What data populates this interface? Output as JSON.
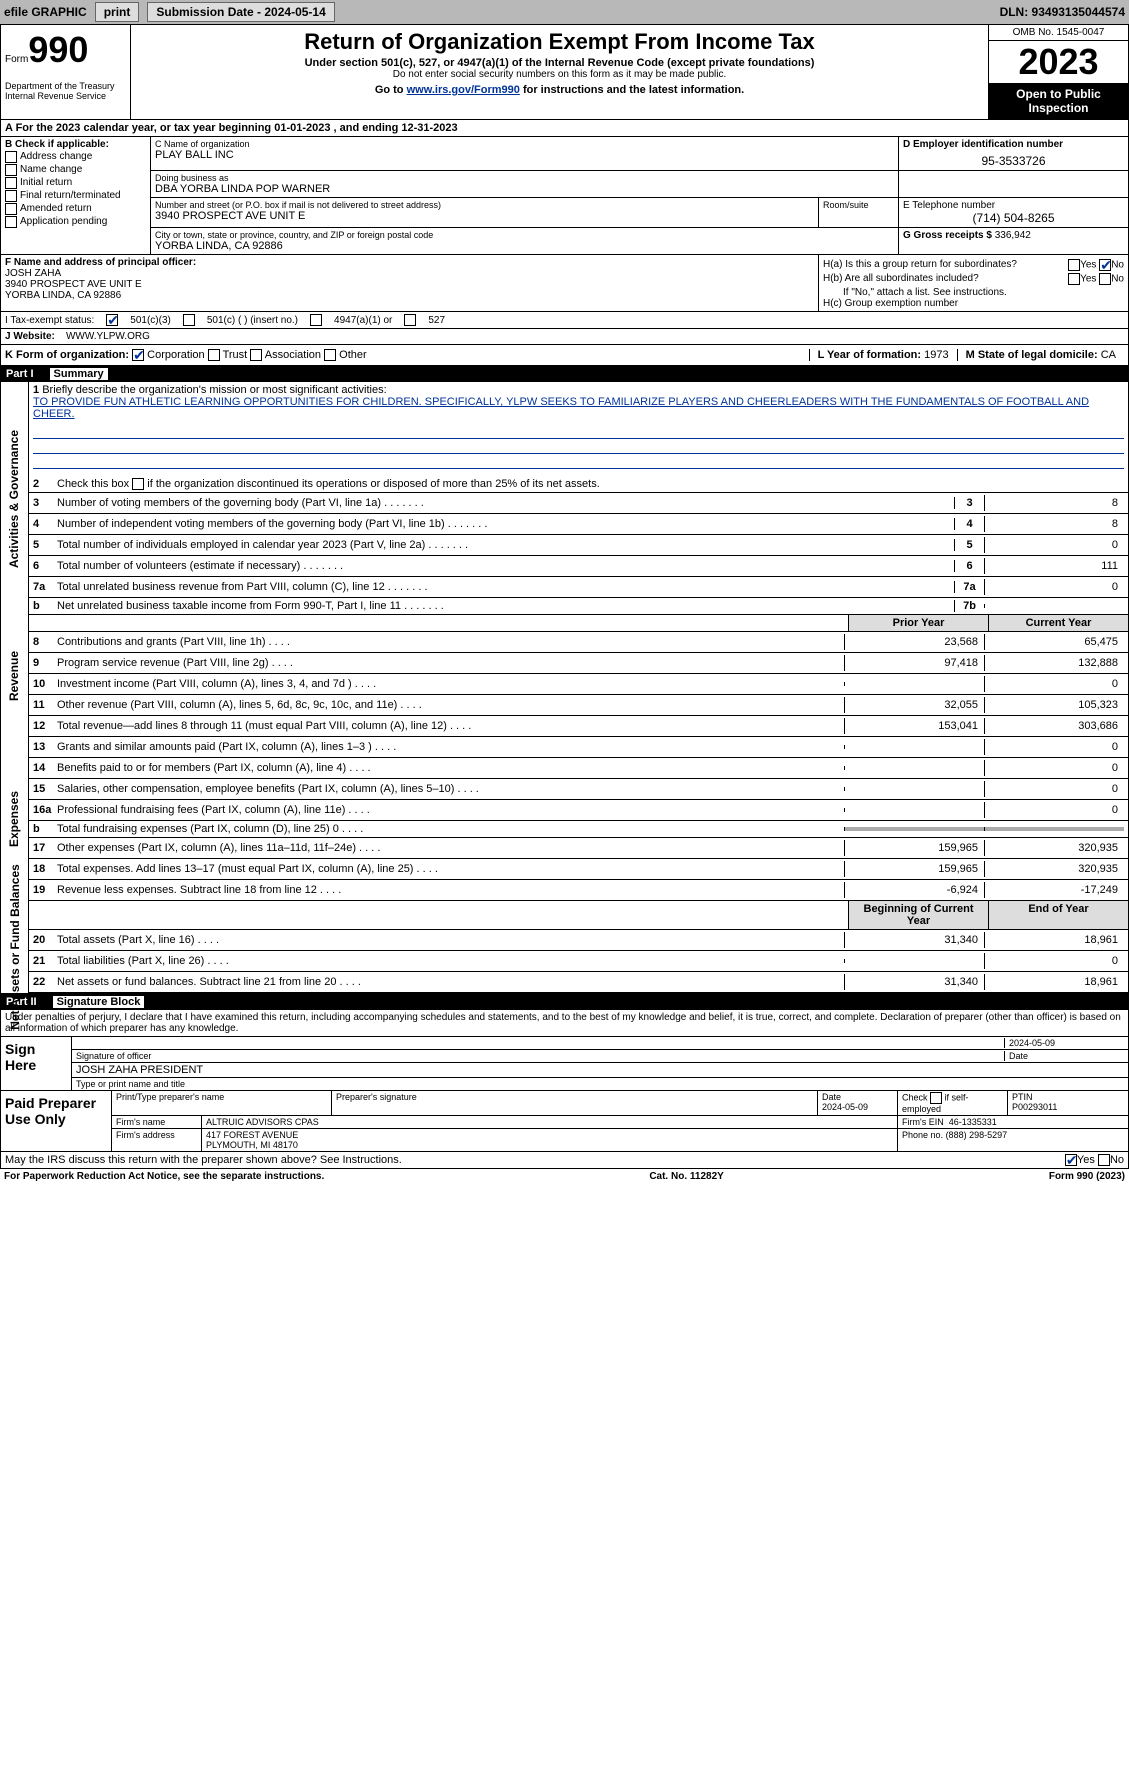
{
  "topbar": {
    "efile": "efile GRAPHIC",
    "print": "print",
    "sub_label": "Submission Date - 2024-05-14",
    "dln": "DLN: 93493135044574"
  },
  "header": {
    "form_word": "Form",
    "form_num": "990",
    "title": "Return of Organization Exempt From Income Tax",
    "subtitle": "Under section 501(c), 527, or 4947(a)(1) of the Internal Revenue Code (except private foundations)",
    "ssn_note": "Do not enter social security numbers on this form as it may be made public.",
    "goto_pre": "Go to ",
    "goto_link": "www.irs.gov/Form990",
    "goto_post": " for instructions and the latest information.",
    "dept": "Department of the Treasury\nInternal Revenue Service",
    "omb": "OMB No. 1545-0047",
    "year": "2023",
    "open": "Open to Public Inspection"
  },
  "row_a": {
    "text_pre": "A For the 2023 calendar year, or tax year beginning ",
    "begin": "01-01-2023",
    "mid": " , and ending ",
    "end": "12-31-2023"
  },
  "box_b": {
    "label": "B Check if applicable:",
    "items": [
      "Address change",
      "Name change",
      "Initial return",
      "Final return/terminated",
      "Amended return",
      "Application pending"
    ]
  },
  "box_c": {
    "name_label": "C Name of organization",
    "name": "PLAY BALL INC",
    "dba_label": "Doing business as",
    "dba": "DBA YORBA LINDA POP WARNER",
    "street_label": "Number and street (or P.O. box if mail is not delivered to street address)",
    "room_label": "Room/suite",
    "street": "3940 PROSPECT AVE UNIT E",
    "city_label": "City or town, state or province, country, and ZIP or foreign postal code",
    "city": "YORBA LINDA, CA  92886"
  },
  "box_d": {
    "label": "D Employer identification number",
    "value": "95-3533726"
  },
  "box_e": {
    "label": "E Telephone number",
    "value": "(714) 504-8265"
  },
  "box_g": {
    "label": "G Gross receipts $",
    "value": "336,942"
  },
  "box_f": {
    "label": "F Name and address of principal officer:",
    "name": "JOSH ZAHA",
    "street": "3940 PROSPECT AVE UNIT E",
    "city": "YORBA LINDA, CA  92886"
  },
  "box_h": {
    "ha": "H(a) Is this a group return for subordinates?",
    "ha_no": true,
    "hb": "H(b) Are all subordinates included?",
    "hb_note": "If \"No,\" attach a list. See instructions.",
    "hc": "H(c) Group exemption number"
  },
  "box_i": {
    "label": "I Tax-exempt status:",
    "c501c3": true,
    "insert": "501(c) (  ) (insert no.)",
    "a4947": "4947(a)(1) or",
    "s527": "527"
  },
  "box_j": {
    "label": "J Website:",
    "value": "WWW.YLPW.ORG"
  },
  "box_k": {
    "label": "K Form of organization:",
    "corp": "Corporation",
    "trust": "Trust",
    "assoc": "Association",
    "other": "Other"
  },
  "box_l": {
    "label": "L Year of formation:",
    "value": "1973"
  },
  "box_m": {
    "label": "M State of legal domicile:",
    "value": "CA"
  },
  "part1": {
    "num": "Part I",
    "title": "Summary"
  },
  "mission": {
    "num": "1",
    "label": "Briefly describe the organization's mission or most significant activities:",
    "text": "TO PROVIDE FUN ATHLETIC LEARNING OPPORTUNITIES FOR CHILDREN. SPECIFICALLY, YLPW SEEKS TO FAMILIARIZE PLAYERS AND CHEERLEADERS WITH THE FUNDAMENTALS OF FOOTBALL AND CHEER."
  },
  "line2": {
    "num": "2",
    "text": "Check this box  if the organization discontinued its operations or disposed of more than 25% of its net assets."
  },
  "gov_lines": [
    {
      "n": "3",
      "t": "Number of voting members of the governing body (Part VI, line 1a)",
      "k": "3",
      "v": "8"
    },
    {
      "n": "4",
      "t": "Number of independent voting members of the governing body (Part VI, line 1b)",
      "k": "4",
      "v": "8"
    },
    {
      "n": "5",
      "t": "Total number of individuals employed in calendar year 2023 (Part V, line 2a)",
      "k": "5",
      "v": "0"
    },
    {
      "n": "6",
      "t": "Total number of volunteers (estimate if necessary)",
      "k": "6",
      "v": "111"
    },
    {
      "n": "7a",
      "t": "Total unrelated business revenue from Part VIII, column (C), line 12",
      "k": "7a",
      "v": "0"
    },
    {
      "n": "b",
      "t": "Net unrelated business taxable income from Form 990-T, Part I, line 11",
      "k": "7b",
      "v": ""
    }
  ],
  "yrh": {
    "py": "Prior Year",
    "cy": "Current Year"
  },
  "rev_lines": [
    {
      "n": "8",
      "t": "Contributions and grants (Part VIII, line 1h)",
      "py": "23,568",
      "cy": "65,475"
    },
    {
      "n": "9",
      "t": "Program service revenue (Part VIII, line 2g)",
      "py": "97,418",
      "cy": "132,888"
    },
    {
      "n": "10",
      "t": "Investment income (Part VIII, column (A), lines 3, 4, and 7d )",
      "py": "",
      "cy": "0"
    },
    {
      "n": "11",
      "t": "Other revenue (Part VIII, column (A), lines 5, 6d, 8c, 9c, 10c, and 11e)",
      "py": "32,055",
      "cy": "105,323"
    },
    {
      "n": "12",
      "t": "Total revenue—add lines 8 through 11 (must equal Part VIII, column (A), line 12)",
      "py": "153,041",
      "cy": "303,686"
    }
  ],
  "exp_lines": [
    {
      "n": "13",
      "t": "Grants and similar amounts paid (Part IX, column (A), lines 1–3 )",
      "py": "",
      "cy": "0"
    },
    {
      "n": "14",
      "t": "Benefits paid to or for members (Part IX, column (A), line 4)",
      "py": "",
      "cy": "0"
    },
    {
      "n": "15",
      "t": "Salaries, other compensation, employee benefits (Part IX, column (A), lines 5–10)",
      "py": "",
      "cy": "0"
    },
    {
      "n": "16a",
      "t": "Professional fundraising fees (Part IX, column (A), line 11e)",
      "py": "",
      "cy": "0"
    },
    {
      "n": "b",
      "t": "Total fundraising expenses (Part IX, column (D), line 25) 0",
      "py": "shade",
      "cy": "shade"
    },
    {
      "n": "17",
      "t": "Other expenses (Part IX, column (A), lines 11a–11d, 11f–24e)",
      "py": "159,965",
      "cy": "320,935"
    },
    {
      "n": "18",
      "t": "Total expenses. Add lines 13–17 (must equal Part IX, column (A), line 25)",
      "py": "159,965",
      "cy": "320,935"
    },
    {
      "n": "19",
      "t": "Revenue less expenses. Subtract line 18 from line 12",
      "py": "-6,924",
      "cy": "-17,249"
    }
  ],
  "yrh2": {
    "py": "Beginning of Current Year",
    "cy": "End of Year"
  },
  "net_lines": [
    {
      "n": "20",
      "t": "Total assets (Part X, line 16)",
      "py": "31,340",
      "cy": "18,961"
    },
    {
      "n": "21",
      "t": "Total liabilities (Part X, line 26)",
      "py": "",
      "cy": "0"
    },
    {
      "n": "22",
      "t": "Net assets or fund balances. Subtract line 21 from line 20",
      "py": "31,340",
      "cy": "18,961"
    }
  ],
  "part2": {
    "num": "Part II",
    "title": "Signature Block"
  },
  "decl": "Under penalties of perjury, I declare that I have examined this return, including accompanying schedules and statements, and to the best of my knowledge and belief, it is true, correct, and complete. Declaration of preparer (other than officer) is based on all information of which preparer has any knowledge.",
  "sign": {
    "here": "Sign Here",
    "sig_label": "Signature of officer",
    "date": "2024-05-09",
    "date_label": "Date",
    "name": "JOSH ZAHA  PRESIDENT",
    "name_label": "Type or print name and title"
  },
  "prep": {
    "here": "Paid Preparer Use Only",
    "pname_label": "Print/Type preparer's name",
    "psig_label": "Preparer's signature",
    "pdate_label": "Date",
    "pdate": "2024-05-09",
    "pself_label": "Check  if self-employed",
    "ptin_label": "PTIN",
    "ptin": "P00293011",
    "firm_label": "Firm's name",
    "firm": "ALTRUIC ADVISORS CPAS",
    "fein_label": "Firm's EIN",
    "fein": "46-1335331",
    "faddr_label": "Firm's address",
    "faddr1": "417 FOREST AVENUE",
    "faddr2": "PLYMOUTH, MI  48170",
    "fphone_label": "Phone no.",
    "fphone": "(888) 298-5297"
  },
  "discuss": "May the IRS discuss this return with the preparer shown above? See Instructions.",
  "discuss_yes": true,
  "foot": {
    "left": "For Paperwork Reduction Act Notice, see the separate instructions.",
    "mid": "Cat. No. 11282Y",
    "right": "Form 990 (2023)"
  },
  "vlabels": {
    "gov": "Activities & Governance",
    "rev": "Revenue",
    "exp": "Expenses",
    "net": "Net Assets or Fund Balances"
  }
}
